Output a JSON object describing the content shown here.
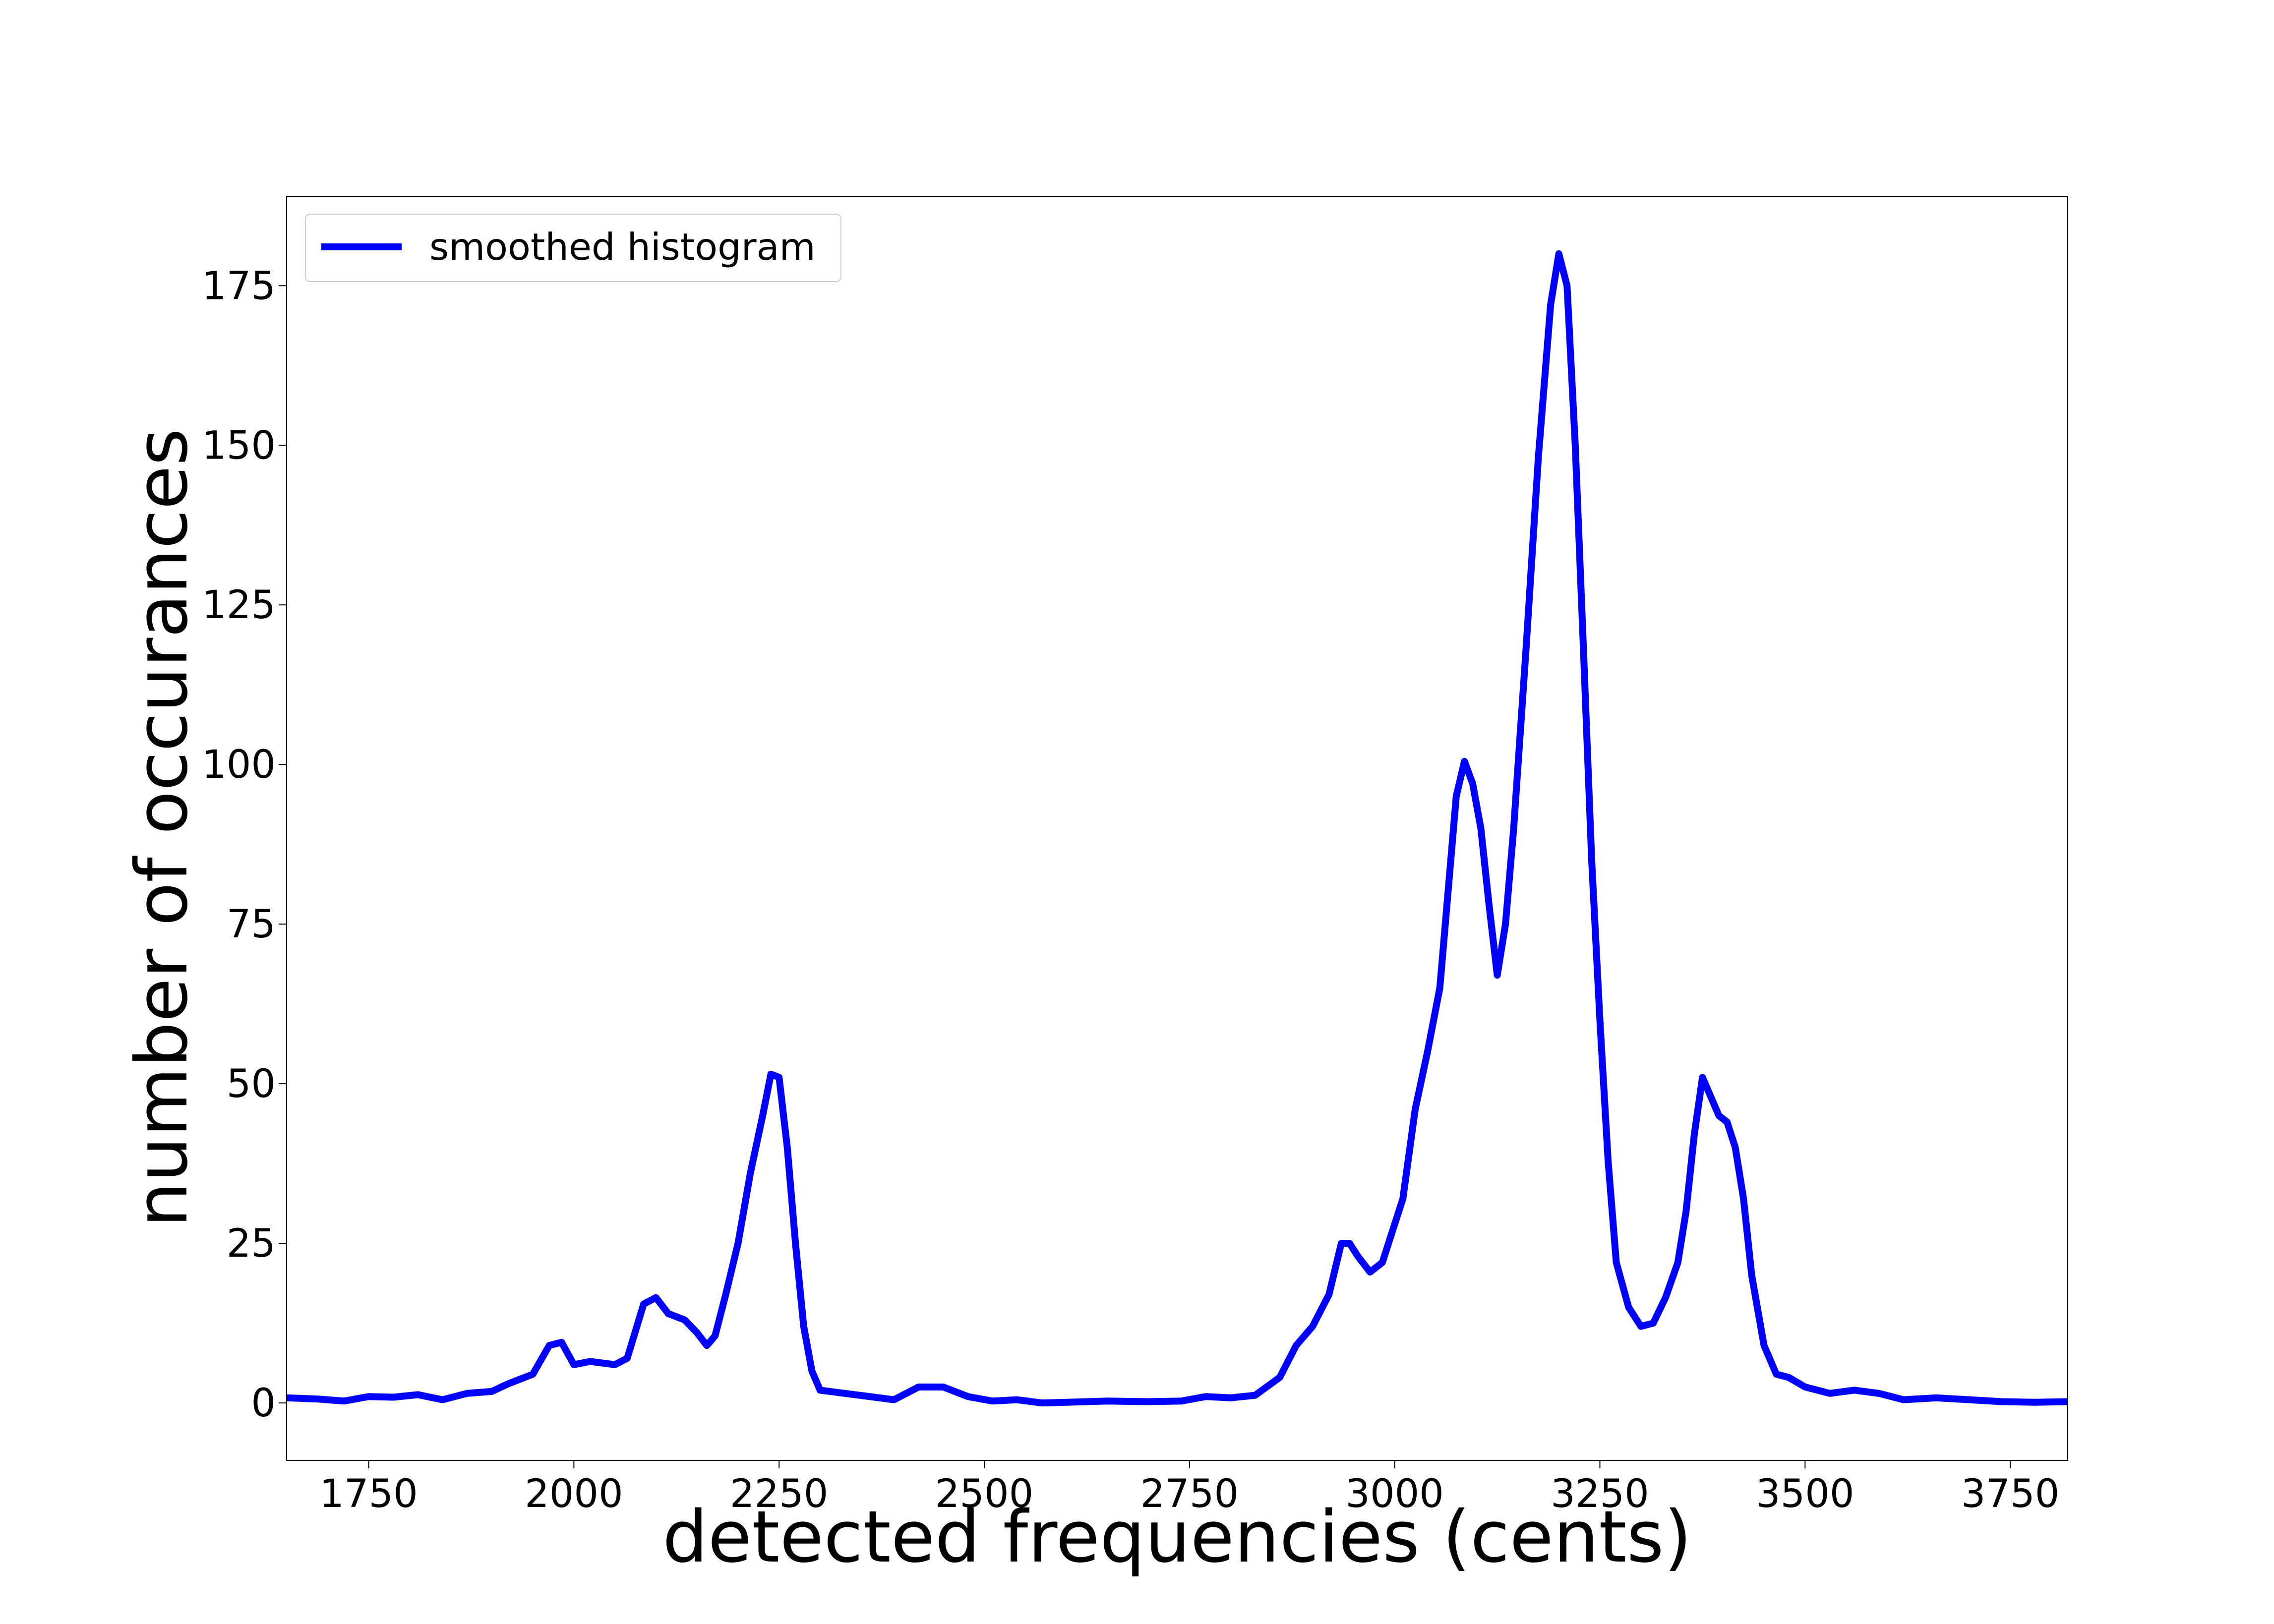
{
  "chart_data": {
    "type": "line",
    "title": "",
    "xlabel": "detected frequencies (cents)",
    "ylabel": "number of occurances",
    "xlim": [
      1650,
      3820
    ],
    "ylim": [
      -9,
      189
    ],
    "xticks": [
      1750,
      2000,
      2250,
      2500,
      2750,
      3000,
      3250,
      3500,
      3750
    ],
    "yticks": [
      0,
      25,
      50,
      75,
      100,
      125,
      150,
      175
    ],
    "grid": false,
    "legend_position": "top-left",
    "series": [
      {
        "name": "smoothed histogram",
        "color": "#0000ff",
        "points": [
          [
            1650,
            0.8
          ],
          [
            1690,
            0.6
          ],
          [
            1720,
            0.3
          ],
          [
            1750,
            1.0
          ],
          [
            1780,
            0.9
          ],
          [
            1810,
            1.3
          ],
          [
            1840,
            0.5
          ],
          [
            1870,
            1.5
          ],
          [
            1900,
            1.8
          ],
          [
            1920,
            3.0
          ],
          [
            1950,
            4.5
          ],
          [
            1970,
            9.0
          ],
          [
            1985,
            9.5
          ],
          [
            2000,
            6.0
          ],
          [
            2020,
            6.5
          ],
          [
            2050,
            6.0
          ],
          [
            2065,
            7.0
          ],
          [
            2085,
            15.5
          ],
          [
            2100,
            16.5
          ],
          [
            2115,
            14.0
          ],
          [
            2135,
            13.0
          ],
          [
            2150,
            11.0
          ],
          [
            2162,
            9.0
          ],
          [
            2172,
            10.5
          ],
          [
            2185,
            17.0
          ],
          [
            2200,
            25.0
          ],
          [
            2215,
            36.0
          ],
          [
            2230,
            45.0
          ],
          [
            2240,
            51.5
          ],
          [
            2250,
            51.0
          ],
          [
            2260,
            40.0
          ],
          [
            2270,
            25.0
          ],
          [
            2280,
            12.0
          ],
          [
            2290,
            5.0
          ],
          [
            2300,
            2.0
          ],
          [
            2330,
            1.5
          ],
          [
            2360,
            1.0
          ],
          [
            2390,
            0.5
          ],
          [
            2420,
            2.5
          ],
          [
            2450,
            2.5
          ],
          [
            2480,
            1.0
          ],
          [
            2510,
            0.3
          ],
          [
            2540,
            0.5
          ],
          [
            2570,
            0.0
          ],
          [
            2600,
            0.1
          ],
          [
            2650,
            0.3
          ],
          [
            2700,
            0.2
          ],
          [
            2740,
            0.3
          ],
          [
            2770,
            1.0
          ],
          [
            2800,
            0.8
          ],
          [
            2830,
            1.2
          ],
          [
            2860,
            4.0
          ],
          [
            2880,
            9.0
          ],
          [
            2900,
            12.0
          ],
          [
            2920,
            17.0
          ],
          [
            2935,
            25.0
          ],
          [
            2945,
            25.0
          ],
          [
            2955,
            23.0
          ],
          [
            2970,
            20.5
          ],
          [
            2985,
            22.0
          ],
          [
            2995,
            26.0
          ],
          [
            3010,
            32.0
          ],
          [
            3025,
            46.0
          ],
          [
            3040,
            55.0
          ],
          [
            3055,
            65.0
          ],
          [
            3065,
            80.0
          ],
          [
            3075,
            95.0
          ],
          [
            3085,
            100.5
          ],
          [
            3095,
            97.0
          ],
          [
            3105,
            90.0
          ],
          [
            3115,
            78.0
          ],
          [
            3125,
            67.0
          ],
          [
            3135,
            75.0
          ],
          [
            3145,
            90.0
          ],
          [
            3160,
            118.0
          ],
          [
            3175,
            148.0
          ],
          [
            3190,
            172.0
          ],
          [
            3200,
            180.0
          ],
          [
            3210,
            175.0
          ],
          [
            3220,
            150.0
          ],
          [
            3230,
            118.0
          ],
          [
            3240,
            85.0
          ],
          [
            3250,
            60.0
          ],
          [
            3260,
            38.0
          ],
          [
            3270,
            22.0
          ],
          [
            3285,
            15.0
          ],
          [
            3300,
            12.0
          ],
          [
            3315,
            12.5
          ],
          [
            3330,
            16.5
          ],
          [
            3345,
            22.0
          ],
          [
            3355,
            30.0
          ],
          [
            3365,
            42.0
          ],
          [
            3375,
            51.0
          ],
          [
            3385,
            48.0
          ],
          [
            3395,
            45.0
          ],
          [
            3405,
            44.0
          ],
          [
            3415,
            40.0
          ],
          [
            3425,
            32.0
          ],
          [
            3435,
            20.0
          ],
          [
            3450,
            9.0
          ],
          [
            3465,
            4.5
          ],
          [
            3480,
            4.0
          ],
          [
            3500,
            2.5
          ],
          [
            3530,
            1.5
          ],
          [
            3560,
            2.0
          ],
          [
            3590,
            1.5
          ],
          [
            3620,
            0.5
          ],
          [
            3660,
            0.8
          ],
          [
            3700,
            0.5
          ],
          [
            3740,
            0.2
          ],
          [
            3780,
            0.1
          ],
          [
            3820,
            0.2
          ]
        ]
      }
    ]
  }
}
